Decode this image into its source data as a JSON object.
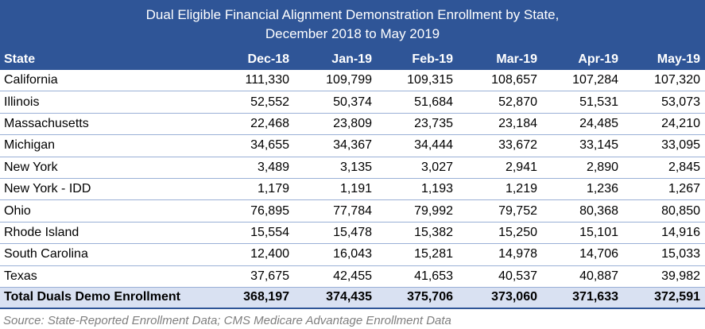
{
  "title_line1": "Dual Eligible Financial Alignment Demonstration Enrollment by State,",
  "title_line2": "December 2018 to May 2019",
  "columns": [
    "State",
    "Dec-18",
    "Jan-19",
    "Feb-19",
    "Mar-19",
    "Apr-19",
    "May-19"
  ],
  "rows": [
    [
      "California",
      "111,330",
      "109,799",
      "109,315",
      "108,657",
      "107,284",
      "107,320"
    ],
    [
      "Illinois",
      "52,552",
      "50,374",
      "51,684",
      "52,870",
      "51,531",
      "53,073"
    ],
    [
      "Massachusetts",
      "22,468",
      "23,809",
      "23,735",
      "23,184",
      "24,485",
      "24,210"
    ],
    [
      "Michigan",
      "34,655",
      "34,367",
      "34,444",
      "33,672",
      "33,145",
      "33,095"
    ],
    [
      "New York",
      "3,489",
      "3,135",
      "3,027",
      "2,941",
      "2,890",
      "2,845"
    ],
    [
      "New York - IDD",
      "1,179",
      "1,191",
      "1,193",
      "1,219",
      "1,236",
      "1,267"
    ],
    [
      "Ohio",
      "76,895",
      "77,784",
      "79,992",
      "79,752",
      "80,368",
      "80,850"
    ],
    [
      "Rhode Island",
      "15,554",
      "15,478",
      "15,382",
      "15,250",
      "15,101",
      "14,916"
    ],
    [
      "South Carolina",
      "12,400",
      "16,043",
      "15,281",
      "14,978",
      "14,706",
      "15,033"
    ],
    [
      "Texas",
      "37,675",
      "42,455",
      "41,653",
      "40,537",
      "40,887",
      "39,982"
    ]
  ],
  "total": [
    "Total Duals Demo Enrollment",
    "368,197",
    "374,435",
    "375,706",
    "373,060",
    "371,633",
    "372,591"
  ],
  "source": "Source: State-Reported Enrollment Data; CMS Medicare Advantage Enrollment Data",
  "colors": {
    "header_bg": "#2F5597",
    "total_bg": "#D9E1F2",
    "source_text": "#7F7F7F"
  }
}
